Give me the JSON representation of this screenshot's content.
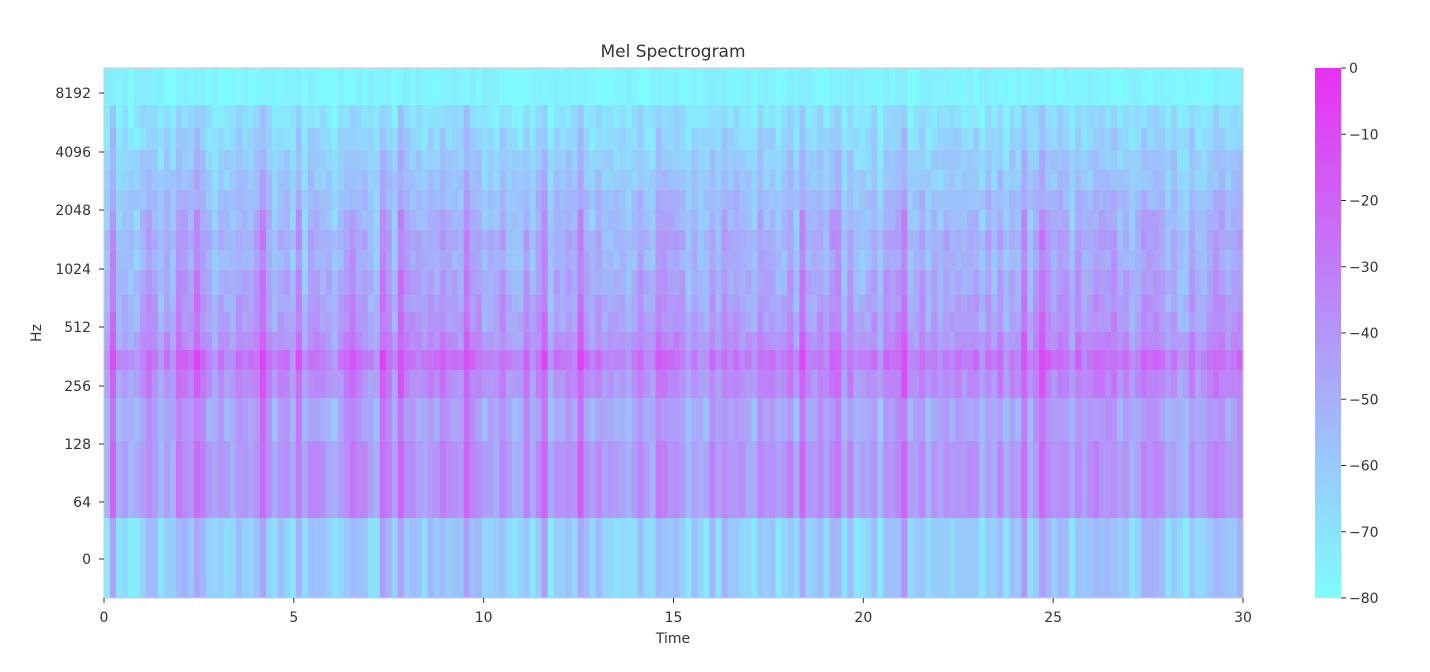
{
  "chart_data": {
    "type": "heatmap",
    "title": "Mel Spectrogram",
    "xlabel": "Time",
    "ylabel": "Hz",
    "x_ticks": [
      "0",
      "5",
      "10",
      "15",
      "20",
      "25",
      "30"
    ],
    "x_tick_values": [
      0,
      5,
      10,
      15,
      20,
      25,
      30
    ],
    "xlim": [
      0,
      30
    ],
    "y_ticks": [
      "0",
      "64",
      "128",
      "256",
      "512",
      "1024",
      "2048",
      "4096",
      "8192"
    ],
    "y_scale": "mel",
    "colorbar": {
      "ticks": [
        "0",
        "−10",
        "−20",
        "−30",
        "−40",
        "−50",
        "−60",
        "−70",
        "−80"
      ],
      "tick_values": [
        0,
        -10,
        -20,
        -30,
        -40,
        -50,
        -60,
        -70,
        -80
      ],
      "range": [
        -80,
        0
      ],
      "colormap": "cool",
      "color_low": "#7efcff",
      "color_high": "#e830f2"
    },
    "band_levels_db": [
      {
        "band": "below 64 Hz",
        "typical_db": -62
      },
      {
        "band": "64-128 Hz",
        "typical_db": -42
      },
      {
        "band": "128-256 Hz",
        "typical_db": -46
      },
      {
        "band": "256-512 Hz",
        "typical_db": -36
      },
      {
        "band": "512-1024 Hz",
        "typical_db": -44
      },
      {
        "band": "1024-2048 Hz",
        "typical_db": -52
      },
      {
        "band": "2048-4096 Hz",
        "typical_db": -60
      },
      {
        "band": "4096-8192 Hz",
        "typical_db": -68
      },
      {
        "band": "above 8192 Hz",
        "typical_db": -80
      }
    ],
    "grid": false
  }
}
